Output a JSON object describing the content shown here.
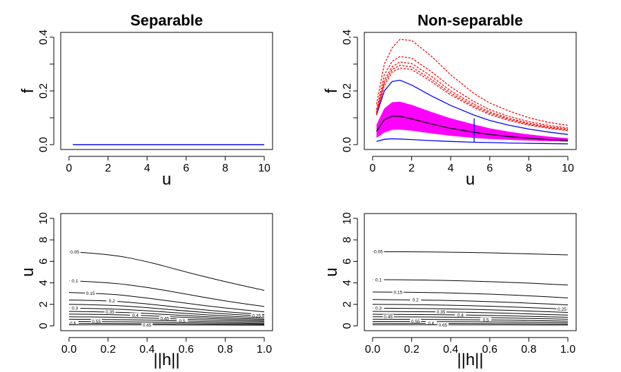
{
  "chart_data": [
    {
      "type": "line",
      "title": "Separable",
      "xlabel": "u",
      "ylabel": "f",
      "xlim": [
        0,
        10
      ],
      "ylim": [
        0,
        0.4
      ],
      "x_ticks": [
        "0",
        "2",
        "4",
        "6",
        "8",
        "10"
      ],
      "y_ticks": [
        "0.0",
        "0.2",
        "0.4"
      ],
      "x_range": [
        0.2,
        10
      ],
      "series": [
        {
          "color": "#000000",
          "style": "solid",
          "x": [
            0.2,
            10
          ],
          "y": [
            0,
            0
          ]
        },
        {
          "color": "#0000ff",
          "style": "solid",
          "x": [
            0.2,
            10
          ],
          "y": [
            0,
            0
          ]
        }
      ]
    },
    {
      "type": "line",
      "title": "Non-separable",
      "xlabel": "u",
      "ylabel": "f",
      "xlim": [
        0,
        10
      ],
      "ylim": [
        0,
        0.4
      ],
      "x_ticks": [
        "0",
        "2",
        "4",
        "6",
        "8",
        "10"
      ],
      "y_ticks": [
        "0.0",
        "0.2",
        "0.4"
      ],
      "x": [
        0.2,
        0.6,
        1.0,
        1.4,
        2.0,
        3.0,
        4.0,
        5.2,
        6.0,
        7.0,
        8.0,
        9.0,
        10.0
      ],
      "band": {
        "color": "#ff00ff",
        "lower": [
          0.025,
          0.045,
          0.055,
          0.056,
          0.052,
          0.042,
          0.033,
          0.025,
          0.021,
          0.018,
          0.015,
          0.013,
          0.011
        ],
        "upper": [
          0.075,
          0.135,
          0.158,
          0.16,
          0.148,
          0.122,
          0.098,
          0.075,
          0.061,
          0.048,
          0.038,
          0.03,
          0.024
        ]
      },
      "series": [
        {
          "color": "#000000",
          "style": "solid",
          "values": [
            0.05,
            0.093,
            0.106,
            0.105,
            0.096,
            0.077,
            0.061,
            0.046,
            0.038,
            0.03,
            0.024,
            0.019,
            0.016
          ]
        },
        {
          "color": "#0000ff",
          "style": "solid",
          "values": [
            0.012,
            0.02,
            0.022,
            0.021,
            0.019,
            0.015,
            0.012,
            0.009,
            0.008,
            0.006,
            0.005,
            0.004,
            0.003
          ]
        },
        {
          "color": "#0000ff",
          "style": "solid",
          "values": [
            0.11,
            0.2,
            0.235,
            0.24,
            0.222,
            0.182,
            0.146,
            0.11,
            0.09,
            0.072,
            0.058,
            0.047,
            0.038
          ]
        },
        {
          "color": "#ff0000",
          "style": "dashed",
          "values": [
            0.15,
            0.3,
            0.36,
            0.392,
            0.388,
            0.33,
            0.26,
            0.19,
            0.155,
            0.125,
            0.1,
            0.083,
            0.072
          ]
        },
        {
          "color": "#ff0000",
          "style": "dashed",
          "values": [
            0.13,
            0.26,
            0.31,
            0.328,
            0.322,
            0.272,
            0.215,
            0.16,
            0.13,
            0.105,
            0.086,
            0.072,
            0.062
          ]
        },
        {
          "color": "#ff0000",
          "style": "dashed",
          "values": [
            0.12,
            0.24,
            0.29,
            0.308,
            0.302,
            0.255,
            0.2,
            0.15,
            0.122,
            0.098,
            0.08,
            0.067,
            0.058
          ]
        },
        {
          "color": "#ff0000",
          "style": "dashed",
          "values": [
            0.115,
            0.23,
            0.28,
            0.295,
            0.29,
            0.243,
            0.192,
            0.143,
            0.117,
            0.094,
            0.076,
            0.064,
            0.055
          ]
        },
        {
          "color": "#ff0000",
          "style": "dashed",
          "values": [
            0.11,
            0.22,
            0.27,
            0.285,
            0.28,
            0.235,
            0.185,
            0.138,
            0.112,
            0.09,
            0.073,
            0.061,
            0.052
          ]
        }
      ],
      "marker": {
        "color": "#0000ff",
        "x": 5.2,
        "y_from": 0.008,
        "y_to": 0.098
      }
    },
    {
      "type": "contour",
      "title": "",
      "xlabel": "||h||",
      "ylabel": "u",
      "xlim": [
        0,
        1
      ],
      "ylim": [
        0,
        10
      ],
      "x_ticks": [
        "0.0",
        "0.2",
        "0.4",
        "0.6",
        "0.8",
        "1.0"
      ],
      "y_ticks": [
        "0",
        "2",
        "4",
        "6",
        "8",
        "10"
      ],
      "x": [
        0,
        0.2,
        0.4,
        0.6,
        0.8,
        1.0
      ],
      "contours": [
        {
          "level": "0.05",
          "label_x": 0.03,
          "values": [
            6.9,
            6.7,
            6.0,
            5.0,
            4.1,
            3.3
          ]
        },
        {
          "level": "0.1",
          "label_x": 0.03,
          "values": [
            4.2,
            4.05,
            3.6,
            2.95,
            2.3,
            1.8
          ]
        },
        {
          "level": "0.15",
          "label_x": 0.11,
          "values": [
            3.1,
            3.0,
            2.6,
            2.1,
            1.65,
            1.3
          ]
        },
        {
          "level": "0.2",
          "label_x": 0.22,
          "values": [
            2.4,
            2.35,
            2.05,
            1.65,
            1.3,
            1.05
          ]
        },
        {
          "level": "0.25",
          "label_x": 0.96,
          "values": [
            2.0,
            1.95,
            1.7,
            1.38,
            1.1,
            0.9
          ]
        },
        {
          "level": "0.3",
          "label_x": 0.03,
          "values": [
            1.65,
            1.6,
            1.42,
            1.15,
            0.92,
            0.75
          ]
        },
        {
          "level": "0.35",
          "label_x": 0.21,
          "values": [
            1.35,
            1.3,
            1.16,
            0.95,
            0.76,
            0.62
          ]
        },
        {
          "level": "0.4",
          "label_x": 0.34,
          "values": [
            1.1,
            1.06,
            0.95,
            0.78,
            0.63,
            0.52
          ]
        },
        {
          "level": "0.45",
          "label_x": 0.49,
          "values": [
            0.85,
            0.82,
            0.74,
            0.61,
            0.5,
            0.42
          ]
        },
        {
          "level": "0.5",
          "label_x": 0.58,
          "values": [
            0.62,
            0.6,
            0.54,
            0.45,
            0.37,
            0.31
          ]
        },
        {
          "level": "0.55",
          "label_x": 0.14,
          "values": [
            0.42,
            0.4,
            0.36,
            0.3,
            0.25,
            0.21
          ]
        },
        {
          "level": "0.6",
          "label_x": 0.02,
          "values": [
            0.24,
            0.23,
            0.21,
            0.18,
            0.15,
            0.13
          ]
        },
        {
          "level": "0.65",
          "label_x": 0.4,
          "values": [
            0.1,
            0.1,
            0.09,
            0.08,
            0.07,
            0.06
          ]
        }
      ]
    },
    {
      "type": "contour",
      "title": "",
      "xlabel": "||h||",
      "ylabel": "u",
      "xlim": [
        0,
        1
      ],
      "ylim": [
        0,
        10
      ],
      "x_ticks": [
        "0.0",
        "0.2",
        "0.4",
        "0.6",
        "0.8",
        "1.0"
      ],
      "y_ticks": [
        "0",
        "2",
        "4",
        "6",
        "8",
        "10"
      ],
      "x": [
        0,
        0.2,
        0.4,
        0.6,
        0.8,
        1.0
      ],
      "contours": [
        {
          "level": "0.05",
          "label_x": 0.03,
          "values": [
            6.9,
            6.9,
            6.85,
            6.8,
            6.7,
            6.6
          ]
        },
        {
          "level": "0.1",
          "label_x": 0.03,
          "values": [
            4.3,
            4.28,
            4.22,
            4.12,
            3.98,
            3.8
          ]
        },
        {
          "level": "0.15",
          "label_x": 0.13,
          "values": [
            3.15,
            3.13,
            3.06,
            2.95,
            2.8,
            2.6
          ]
        },
        {
          "level": "0.2",
          "label_x": 0.22,
          "values": [
            2.45,
            2.42,
            2.36,
            2.26,
            2.12,
            1.95
          ]
        },
        {
          "level": "0.25",
          "label_x": 0.97,
          "values": [
            2.0,
            1.98,
            1.92,
            1.83,
            1.7,
            1.55
          ]
        },
        {
          "level": "0.3",
          "label_x": 0.03,
          "values": [
            1.65,
            1.63,
            1.58,
            1.5,
            1.38,
            1.25
          ]
        },
        {
          "level": "0.35",
          "label_x": 0.35,
          "values": [
            1.35,
            1.33,
            1.29,
            1.22,
            1.12,
            1.0
          ]
        },
        {
          "level": "0.4",
          "label_x": 0.45,
          "values": [
            1.08,
            1.07,
            1.03,
            0.97,
            0.89,
            0.8
          ]
        },
        {
          "level": "0.45",
          "label_x": 0.08,
          "values": [
            0.85,
            0.84,
            0.81,
            0.76,
            0.7,
            0.62
          ]
        },
        {
          "level": "0.5",
          "label_x": 0.58,
          "values": [
            0.62,
            0.61,
            0.59,
            0.55,
            0.5,
            0.44
          ]
        },
        {
          "level": "0.55",
          "label_x": 0.22,
          "values": [
            0.42,
            0.41,
            0.4,
            0.37,
            0.34,
            0.3
          ]
        },
        {
          "level": "0.6",
          "label_x": 0.3,
          "values": [
            0.24,
            0.24,
            0.23,
            0.21,
            0.19,
            0.17
          ]
        },
        {
          "level": "0.65",
          "label_x": 0.36,
          "values": [
            0.1,
            0.1,
            0.09,
            0.09,
            0.08,
            0.07
          ]
        }
      ]
    }
  ]
}
